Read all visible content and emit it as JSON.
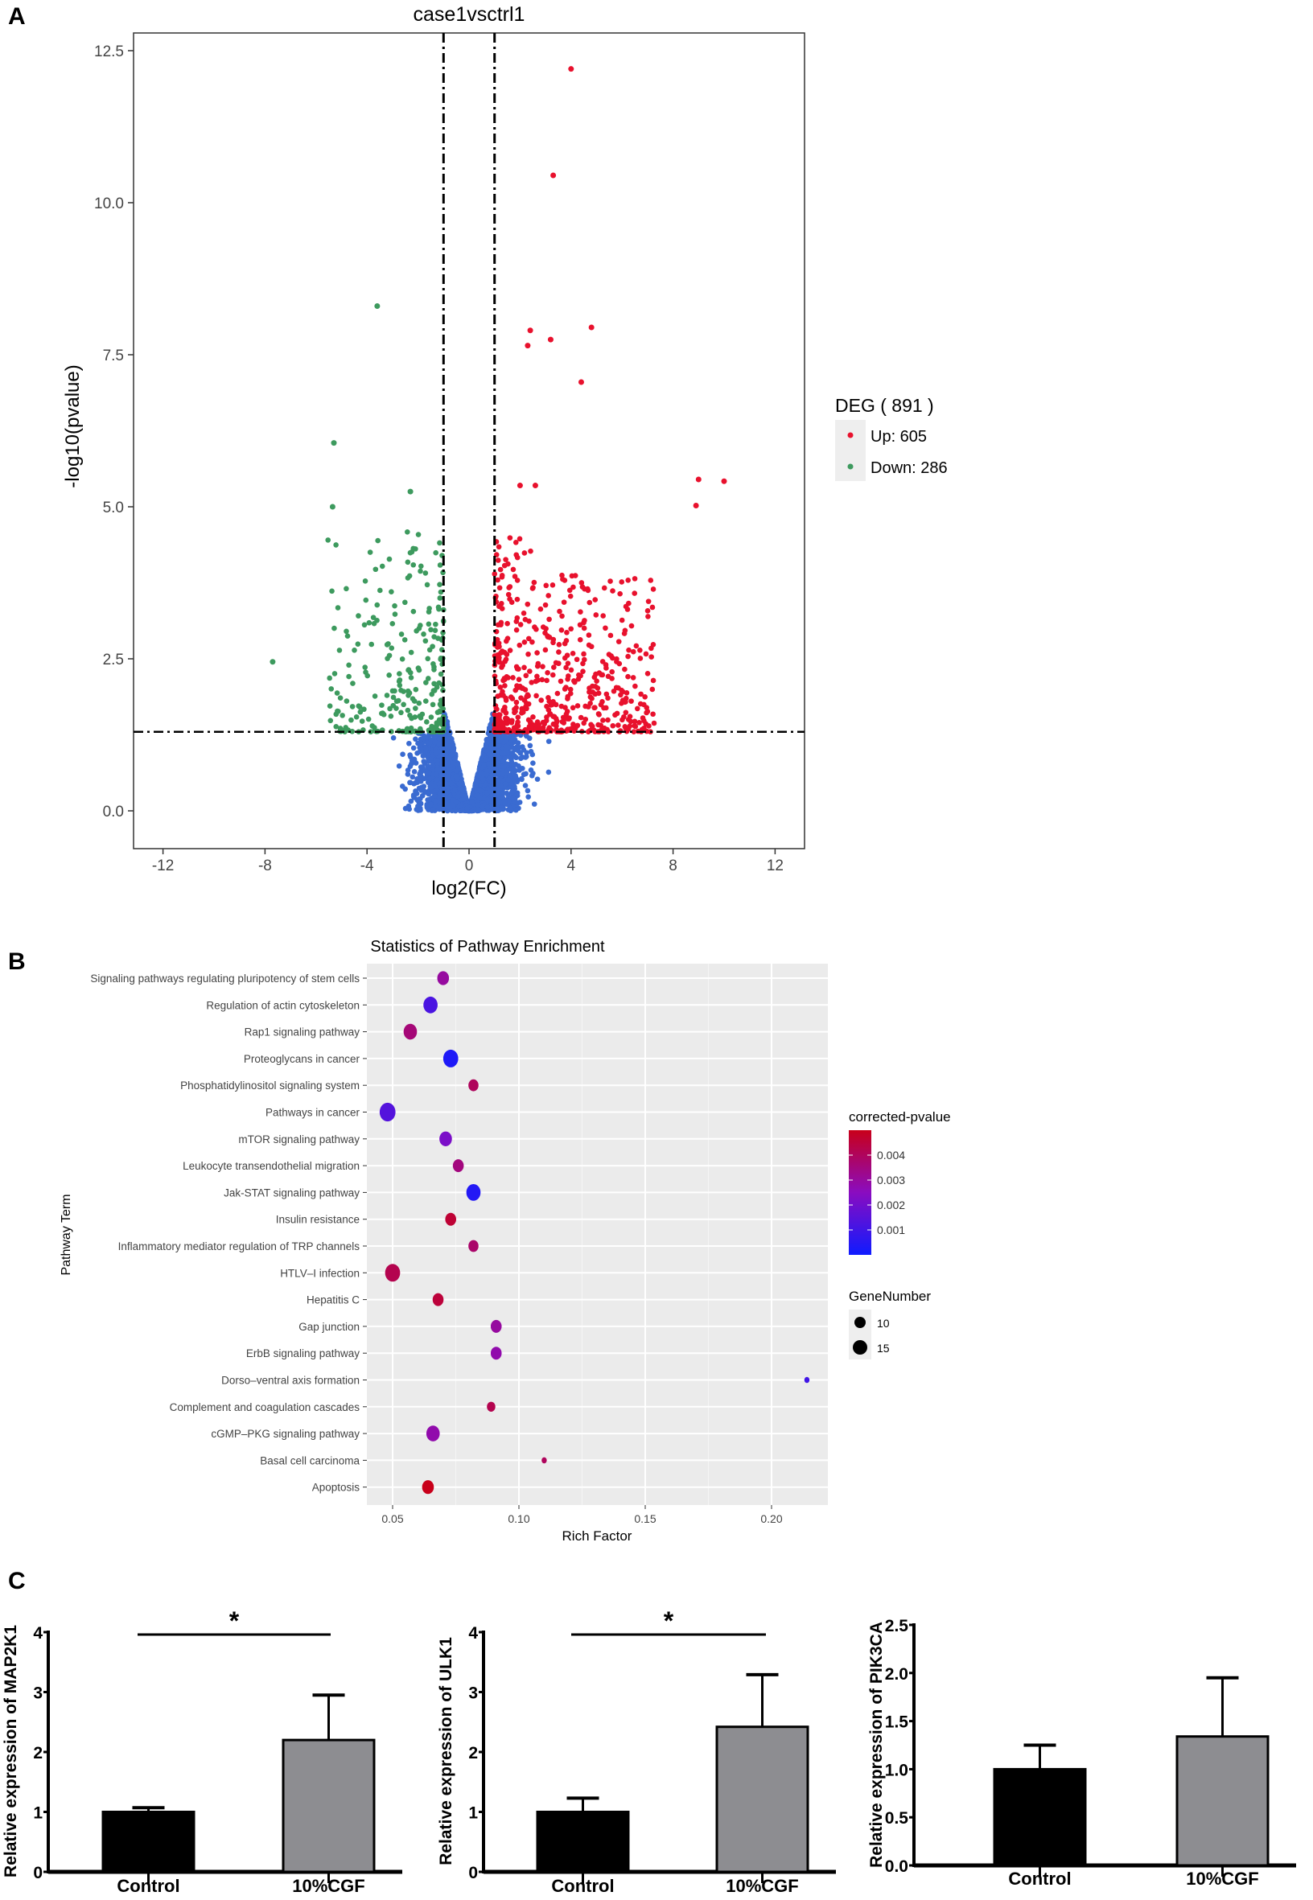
{
  "panel_labels": [
    "A",
    "B",
    "C"
  ],
  "chart_data": [
    {
      "type": "scatter",
      "title": "case1vsctrl1",
      "xlabel": "log2(FC)",
      "ylabel": "-log10(pvalue)",
      "xlim": [
        -13,
        13.5
      ],
      "ylim": [
        -0.6,
        12.9
      ],
      "xticks": [
        "-12",
        "-8",
        "-4",
        "0",
        "4",
        "8",
        "12"
      ],
      "xtick_values": [
        -12,
        -8,
        -4,
        0,
        4,
        8,
        12
      ],
      "yticks": [
        "0.0",
        "2.5",
        "5.0",
        "7.5",
        "10.0",
        "12.5"
      ],
      "ytick_values": [
        0,
        2.5,
        5,
        7.5,
        10,
        12.5
      ],
      "thresholds": {
        "log2fc": [
          -1,
          1
        ],
        "neg_log10_p": 1.3
      },
      "legend": {
        "title": "DEG ( 891 )",
        "entries": [
          {
            "label": "Up: 605",
            "color": "#e8112d"
          },
          {
            "label": "Down: 286",
            "color": "#3d9a5e"
          }
        ],
        "placement": "right"
      },
      "series": [
        {
          "name": "Up",
          "count": 605,
          "color": "#e8112d"
        },
        {
          "name": "Down",
          "count": 286,
          "color": "#3d9a5e"
        },
        {
          "name": "Not significant",
          "color": "#3a6bd1"
        }
      ],
      "notable_points": [
        {
          "x": 4.0,
          "y": 12.2,
          "s": "Up"
        },
        {
          "x": 3.3,
          "y": 10.45,
          "s": "Up"
        },
        {
          "x": 2.4,
          "y": 7.9,
          "s": "Up"
        },
        {
          "x": 2.3,
          "y": 7.65,
          "s": "Up"
        },
        {
          "x": 3.2,
          "y": 7.75,
          "s": "Up"
        },
        {
          "x": 4.8,
          "y": 7.95,
          "s": "Up"
        },
        {
          "x": 4.4,
          "y": 7.05,
          "s": "Up"
        },
        {
          "x": 9.0,
          "y": 5.45,
          "s": "Up"
        },
        {
          "x": 10.0,
          "y": 5.42,
          "s": "Up"
        },
        {
          "x": 8.9,
          "y": 5.02,
          "s": "Up"
        },
        {
          "x": 2.0,
          "y": 5.35,
          "s": "Up"
        },
        {
          "x": 2.6,
          "y": 5.35,
          "s": "Up"
        },
        {
          "x": -3.6,
          "y": 8.3,
          "s": "Down"
        },
        {
          "x": -5.3,
          "y": 6.05,
          "s": "Down"
        },
        {
          "x": -5.35,
          "y": 5.0,
          "s": "Down"
        },
        {
          "x": -7.7,
          "y": 2.45,
          "s": "Down"
        },
        {
          "x": -2.3,
          "y": 5.25,
          "s": "Down"
        }
      ]
    },
    {
      "type": "scatter",
      "title": "Statistics of Pathway Enrichment",
      "xlabel": "Rich Factor",
      "ylabel": "Pathway Term",
      "xlim": [
        0.04,
        0.224
      ],
      "xticks": [
        "0.05",
        "0.10",
        "0.15",
        "0.20"
      ],
      "xtick_values": [
        0.05,
        0.1,
        0.15,
        0.2
      ],
      "color_legend": {
        "title": "corrected-pvalue",
        "ticks": [
          "0.004",
          "0.003",
          "0.002",
          "0.001"
        ],
        "tick_values": [
          0.004,
          0.003,
          0.002,
          0.001
        ],
        "range": [
          0,
          0.005
        ],
        "low_color": "#0f1bff",
        "high_color": "#c8001a"
      },
      "size_legend": {
        "title": "GeneNumber",
        "ticks": [
          "10",
          "15"
        ],
        "tick_values": [
          10,
          15
        ]
      },
      "terms": [
        {
          "name": "Signaling pathways regulating pluripotency of stem cells",
          "rich": 0.07,
          "p": 0.003,
          "genes": 11
        },
        {
          "name": "Regulation of actin cytoskeleton",
          "rich": 0.065,
          "p": 0.0012,
          "genes": 14
        },
        {
          "name": "Rap1 signaling pathway",
          "rich": 0.057,
          "p": 0.0036,
          "genes": 13
        },
        {
          "name": "Proteoglycans in cancer",
          "rich": 0.073,
          "p": 0.0003,
          "genes": 15
        },
        {
          "name": "Phosphatidylinositol signaling system",
          "rich": 0.082,
          "p": 0.004,
          "genes": 9
        },
        {
          "name": "Pathways in cancer",
          "rich": 0.048,
          "p": 0.0014,
          "genes": 16
        },
        {
          "name": "mTOR signaling pathway",
          "rich": 0.071,
          "p": 0.0022,
          "genes": 12
        },
        {
          "name": "Leukocyte transendothelial migration",
          "rich": 0.076,
          "p": 0.0035,
          "genes": 10
        },
        {
          "name": "Jak-STAT signaling pathway",
          "rich": 0.082,
          "p": 0.0004,
          "genes": 14
        },
        {
          "name": "Insulin resistance",
          "rich": 0.073,
          "p": 0.0046,
          "genes": 10
        },
        {
          "name": "Inflammatory mediator regulation of TRP channels",
          "rich": 0.082,
          "p": 0.0038,
          "genes": 9
        },
        {
          "name": "HTLV–I infection",
          "rich": 0.05,
          "p": 0.0042,
          "genes": 15
        },
        {
          "name": "Hepatitis C",
          "rich": 0.068,
          "p": 0.0045,
          "genes": 10
        },
        {
          "name": "Gap junction",
          "rich": 0.091,
          "p": 0.003,
          "genes": 10
        },
        {
          "name": "ErbB signaling pathway",
          "rich": 0.091,
          "p": 0.0028,
          "genes": 10
        },
        {
          "name": "Dorso–ventral axis formation",
          "rich": 0.214,
          "p": 0.001,
          "genes": 3
        },
        {
          "name": "Complement and coagulation cascades",
          "rich": 0.089,
          "p": 0.0042,
          "genes": 7
        },
        {
          "name": "cGMP–PKG signaling pathway",
          "rich": 0.066,
          "p": 0.0028,
          "genes": 13
        },
        {
          "name": "Basal cell carcinoma",
          "rich": 0.11,
          "p": 0.004,
          "genes": 3
        },
        {
          "name": "Apoptosis",
          "rich": 0.064,
          "p": 0.005,
          "genes": 11
        }
      ]
    },
    {
      "type": "bar",
      "ylabel": "Relative expression of MAP2K1",
      "categories": [
        "Control",
        "10%CGF"
      ],
      "values": [
        1.0,
        2.2
      ],
      "errors": [
        0.07,
        0.75
      ],
      "ylim": [
        0,
        4
      ],
      "yticks": [
        "0",
        "1",
        "2",
        "3",
        "4"
      ],
      "ytick_values": [
        0,
        1,
        2,
        3,
        4
      ],
      "significance": "*"
    },
    {
      "type": "bar",
      "ylabel": "Relative expression of ULK1",
      "categories": [
        "Control",
        "10%CGF"
      ],
      "values": [
        1.0,
        2.42
      ],
      "errors": [
        0.23,
        0.87
      ],
      "ylim": [
        0,
        4
      ],
      "yticks": [
        "0",
        "1",
        "2",
        "3",
        "4"
      ],
      "ytick_values": [
        0,
        1,
        2,
        3,
        4
      ],
      "significance": "*"
    },
    {
      "type": "bar",
      "ylabel": "Relative expression of PIK3CA",
      "categories": [
        "Control",
        "10%CGF"
      ],
      "values": [
        1.0,
        1.34
      ],
      "errors": [
        0.25,
        0.61
      ],
      "ylim": [
        0,
        2.5
      ],
      "yticks": [
        "0.0",
        "0.5",
        "1.0",
        "1.5",
        "2.0",
        "2.5"
      ],
      "ytick_values": [
        0,
        0.5,
        1,
        1.5,
        2,
        2.5
      ],
      "significance": ""
    }
  ]
}
